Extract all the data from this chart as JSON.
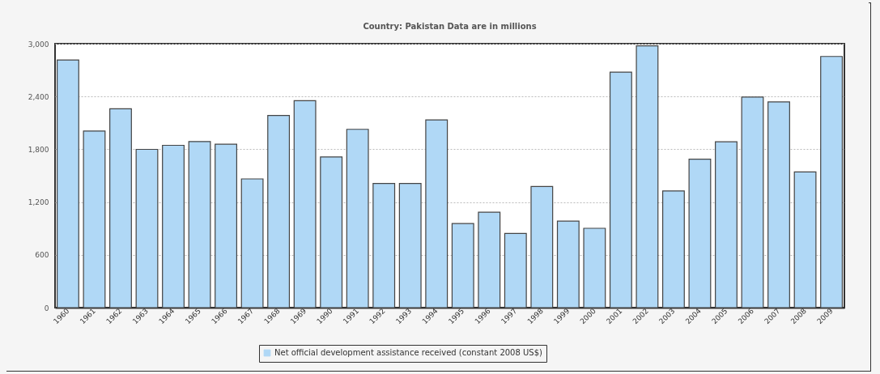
{
  "chart_data": {
    "type": "bar",
    "title": "Country: Pakistan  Data are in millions",
    "categories": [
      "1960",
      "1961",
      "1962",
      "1963",
      "1964",
      "1965",
      "1966",
      "1967",
      "1968",
      "1969",
      "1990",
      "1991",
      "1992",
      "1993",
      "1994",
      "1995",
      "1996",
      "1997",
      "1998",
      "1999",
      "2000",
      "2001",
      "2002",
      "2003",
      "2004",
      "2005",
      "2006",
      "2007",
      "2008",
      "2009"
    ],
    "series": [
      {
        "name": "Net official development assistance received (constant 2008 US$)",
        "color": "#b0d8f6",
        "values": [
          2815,
          2008,
          2261,
          1799,
          1845,
          1888,
          1857,
          1463,
          2184,
          2353,
          1713,
          2027,
          1411,
          1411,
          2134,
          955,
          1084,
          844,
          1377,
          983,
          902,
          2677,
          2975,
          1327,
          1688,
          1885,
          2393,
          2338,
          1543,
          2855
        ]
      }
    ],
    "ylim": [
      0,
      3000
    ],
    "yticks": [
      {
        "value": 0,
        "label": "0"
      },
      {
        "value": 600,
        "label": "600"
      },
      {
        "value": 1200,
        "label": "1,200"
      },
      {
        "value": 1800,
        "label": "1,800"
      },
      {
        "value": 2400,
        "label": "2,400"
      },
      {
        "value": 3000,
        "label": "3,000"
      }
    ],
    "grid": "y",
    "legend": "bottom"
  }
}
